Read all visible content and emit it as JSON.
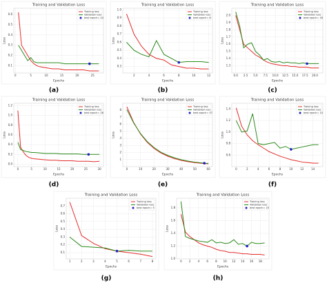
{
  "chart_data": [
    {
      "type": "line",
      "label": "(a)",
      "title": "Training and Validation Loss",
      "xlabel": "Epochs",
      "ylabel": "Loss",
      "legend": "upper right",
      "grid": true,
      "x": [
        1,
        2,
        3,
        4,
        5,
        6,
        7,
        8,
        10,
        12,
        14,
        16,
        18,
        20,
        22,
        24,
        26,
        27
      ],
      "series": [
        {
          "name": "Training loss",
          "color": "#e32b2b",
          "values": [
            0.62,
            0.3,
            0.25,
            0.2,
            0.15,
            0.12,
            0.1,
            0.09,
            0.08,
            0.07,
            0.07,
            0.06,
            0.06,
            0.06,
            0.06,
            0.05,
            0.05,
            0.05
          ]
        },
        {
          "name": "Validation loss",
          "color": "#2a8a1a",
          "values": [
            0.3,
            0.25,
            0.2,
            0.15,
            0.18,
            0.14,
            0.13,
            0.13,
            0.13,
            0.13,
            0.13,
            0.12,
            0.12,
            0.12,
            0.12,
            0.12,
            0.12,
            0.12
          ]
        }
      ],
      "best": {
        "name": "best epoch= 24",
        "color": "#1f1fbf",
        "x": 24,
        "y": 0.12
      },
      "xlim": [
        -0.5,
        28.5
      ],
      "xticks": [
        0,
        5,
        10,
        15,
        20,
        25
      ],
      "ylim": [
        0.03,
        0.66
      ],
      "yticks": [
        0.1,
        0.2,
        0.3,
        0.4,
        0.5,
        0.6
      ]
    },
    {
      "type": "line",
      "label": "(b)",
      "title": "Training and Validation Loss",
      "xlabel": "Epochs",
      "ylabel": "Loss",
      "legend": "upper right",
      "grid": true,
      "x": [
        1,
        2,
        3,
        4,
        5,
        6,
        7,
        8,
        9,
        10,
        11,
        12
      ],
      "series": [
        {
          "name": "Training loss",
          "color": "#e32b2b",
          "values": [
            0.95,
            0.7,
            0.55,
            0.45,
            0.4,
            0.38,
            0.32,
            0.3,
            0.28,
            0.28,
            0.27,
            0.27
          ]
        },
        {
          "name": "Validation loss",
          "color": "#2a8a1a",
          "values": [
            0.6,
            0.5,
            0.45,
            0.42,
            0.62,
            0.45,
            0.4,
            0.35,
            0.36,
            0.36,
            0.36,
            0.35
          ]
        }
      ],
      "best": {
        "name": "best epoch= 8",
        "color": "#1f1fbf",
        "x": 8,
        "y": 0.35
      },
      "xlim": [
        0.5,
        12.5
      ],
      "xticks": [
        2,
        4,
        6,
        8,
        10,
        12
      ],
      "ylim": [
        0.22,
        1.02
      ],
      "yticks": [
        0.3,
        0.4,
        0.5,
        0.6,
        0.7,
        0.8,
        0.9,
        {
          "value": 1,
          "label": "1.0"
        }
      ]
    },
    {
      "type": "line",
      "label": "(c)",
      "title": "Training and Validation Loss",
      "xlabel": "Epochs",
      "ylabel": "Loss",
      "legend": "upper right",
      "grid": true,
      "x": [
        0,
        1,
        2,
        3,
        4,
        5,
        6,
        7,
        8,
        9,
        10,
        11,
        12,
        13,
        14,
        15,
        16,
        17,
        18,
        19,
        20,
        21
      ],
      "series": [
        {
          "name": "Training loss",
          "color": "#e32b2b",
          "values": [
            2.0,
            1.8,
            1.6,
            1.55,
            1.5,
            1.45,
            1.42,
            1.38,
            1.35,
            1.33,
            1.32,
            1.31,
            1.3,
            1.3,
            1.29,
            1.29,
            1.28,
            1.28,
            1.28,
            1.27,
            1.27,
            1.27
          ]
        },
        {
          "name": "Validation loss",
          "color": "#2a8a1a",
          "values": [
            2.05,
            1.85,
            1.55,
            1.6,
            1.62,
            1.5,
            1.45,
            1.38,
            1.4,
            1.36,
            1.35,
            1.36,
            1.34,
            1.35,
            1.34,
            1.34,
            1.33,
            1.34,
            1.33,
            1.33,
            1.33,
            1.33
          ]
        }
      ],
      "best": {
        "name": "best epoch= 18",
        "color": "#1f1fbf",
        "x": 18,
        "y": 1.33
      },
      "xlim": [
        -1,
        22
      ],
      "xticks": [
        {
          "value": 0,
          "label": "0.0"
        },
        2.5,
        {
          "value": 5,
          "label": "5.0"
        },
        7.5,
        {
          "value": 10,
          "label": "10.0"
        },
        12.5,
        {
          "value": 15,
          "label": "15.0"
        },
        17.5,
        {
          "value": 20,
          "label": "20.0"
        }
      ],
      "ylim": [
        1.2,
        2.1
      ],
      "yticks": [
        1.3,
        1.4,
        1.5,
        1.6,
        1.7,
        1.8,
        1.9,
        {
          "value": 2,
          "label": "2.0"
        }
      ]
    },
    {
      "type": "line",
      "label": "(d)",
      "title": "Training and Validation Loss",
      "xlabel": "Epochs",
      "ylabel": "Loss",
      "legend": "upper right",
      "grid": true,
      "x": [
        0,
        1,
        2,
        3,
        4,
        5,
        6,
        8,
        10,
        12,
        14,
        16,
        18,
        20,
        22,
        24,
        26,
        28,
        30
      ],
      "series": [
        {
          "name": "Training loss",
          "color": "#e32b2b",
          "values": [
            1.1,
            0.35,
            0.25,
            0.18,
            0.14,
            0.12,
            0.11,
            0.1,
            0.09,
            0.08,
            0.08,
            0.07,
            0.07,
            0.07,
            0.06,
            0.06,
            0.06,
            0.05,
            0.06
          ]
        },
        {
          "name": "Validation loss",
          "color": "#2a8a1a",
          "values": [
            0.45,
            0.3,
            0.28,
            0.26,
            0.25,
            0.24,
            0.24,
            0.23,
            0.22,
            0.22,
            0.22,
            0.21,
            0.21,
            0.21,
            0.21,
            0.2,
            0.2,
            0.2,
            0.2
          ]
        }
      ],
      "best": {
        "name": "best epoch= 26",
        "color": "#1f1fbf",
        "x": 26,
        "y": 0.2
      },
      "xlim": [
        -1.5,
        31.5
      ],
      "xticks": [
        0,
        5,
        10,
        15,
        20,
        25,
        30
      ],
      "ylim": [
        -0.05,
        1.25
      ],
      "yticks": [
        {
          "value": 0,
          "label": "0.0"
        },
        0.2,
        0.4,
        0.6,
        0.8,
        {
          "value": 1,
          "label": "1.0"
        },
        1.2
      ]
    },
    {
      "type": "line",
      "label": "(e)",
      "title": "Training and Validation Loss",
      "xlabel": "Epochs",
      "ylabel": "Loss",
      "legend": "upper right",
      "grid": true,
      "x": [
        0,
        5,
        10,
        15,
        20,
        25,
        30,
        35,
        40,
        45,
        50,
        55,
        57,
        60
      ],
      "series": [
        {
          "name": "Training loss",
          "color": "#e32b2b",
          "values": [
            8.5,
            6.27,
            4.64,
            3.45,
            2.58,
            1.94,
            1.48,
            1.14,
            0.88,
            0.7,
            0.56,
            0.46,
            0.43,
            0.39
          ]
        },
        {
          "name": "Validation loss",
          "color": "#2a8a1a",
          "values": [
            8.1,
            6.2,
            4.7,
            3.55,
            2.7,
            2.05,
            1.6,
            1.25,
            0.98,
            0.78,
            0.63,
            0.52,
            0.48,
            0.45
          ]
        }
      ],
      "best": {
        "name": "best epoch= 57",
        "color": "#1f1fbf",
        "x": 57,
        "y": 0.48
      },
      "xlim": [
        -3,
        63
      ],
      "xticks": [
        0,
        10,
        20,
        30,
        40,
        50,
        60
      ],
      "ylim": [
        0,
        9
      ],
      "yticks": [
        1,
        2,
        3,
        4,
        5,
        6,
        7,
        8
      ]
    },
    {
      "type": "line",
      "label": "(f)",
      "title": "Training and Validation Loss",
      "xlabel": "Epochs",
      "ylabel": "Loss",
      "legend": "upper right",
      "grid": true,
      "x": [
        0,
        1,
        2,
        3,
        4,
        5,
        6,
        7,
        8,
        9,
        10,
        11,
        12,
        13,
        14,
        15
      ],
      "series": [
        {
          "name": "Training loss",
          "color": "#e32b2b",
          "values": [
            1.42,
            1.1,
            0.95,
            0.85,
            0.78,
            0.72,
            0.66,
            0.62,
            0.58,
            0.55,
            0.52,
            0.5,
            0.48,
            0.47,
            0.46,
            0.46
          ]
        },
        {
          "name": "Validation loss",
          "color": "#2a8a1a",
          "values": [
            1.2,
            1.0,
            1.02,
            1.32,
            0.8,
            0.78,
            0.8,
            0.82,
            0.72,
            0.75,
            0.7,
            0.72,
            0.74,
            0.76,
            0.78,
            0.78
          ]
        }
      ],
      "best": {
        "name": "best epoch= 10",
        "color": "#1f1fbf",
        "x": 10,
        "y": 0.7
      },
      "xlim": [
        -0.8,
        15.8
      ],
      "xticks": [
        0,
        2,
        4,
        6,
        8,
        10,
        12,
        14
      ],
      "ylim": [
        0.4,
        1.5
      ],
      "yticks": [
        0.6,
        0.8,
        {
          "value": 1,
          "label": "1.0"
        },
        1.2,
        1.4
      ]
    },
    {
      "type": "line",
      "label": "(g)",
      "title": "Training and Validation Loss",
      "xlabel": "Epochs",
      "ylabel": "Loss",
      "legend": "upper right",
      "grid": true,
      "x": [
        1,
        2,
        3,
        4,
        5,
        6,
        7,
        8
      ],
      "series": [
        {
          "name": "Training loss",
          "color": "#e32b2b",
          "values": [
            0.75,
            0.32,
            0.22,
            0.15,
            0.12,
            0.1,
            0.08,
            0.05
          ]
        },
        {
          "name": "Validation loss",
          "color": "#2a8a1a",
          "values": [
            0.3,
            0.18,
            0.17,
            0.16,
            0.12,
            0.13,
            0.12,
            0.12
          ]
        }
      ],
      "best": {
        "name": "best epoch= 5",
        "color": "#1f1fbf",
        "x": 5,
        "y": 0.12
      },
      "xlim": [
        0.7,
        8.3
      ],
      "xticks": [
        1,
        2,
        3,
        4,
        5,
        6,
        7,
        8
      ],
      "ylim": [
        0.02,
        0.8
      ],
      "yticks": [
        0.1,
        0.2,
        0.3,
        0.4,
        0.5,
        0.6,
        0.7
      ]
    },
    {
      "type": "line",
      "label": "(h)",
      "title": "Training and Validation Loss",
      "xlabel": "Epochs",
      "ylabel": "Loss",
      "legend": "upper right",
      "grid": true,
      "x": [
        0,
        1,
        2,
        3,
        4,
        5,
        6,
        7,
        8,
        9,
        10,
        11,
        12,
        13,
        14,
        15,
        16,
        17,
        18,
        19
      ],
      "series": [
        {
          "name": "Training loss",
          "color": "#e32b2b",
          "values": [
            1.7,
            1.42,
            1.35,
            1.3,
            1.25,
            1.22,
            1.2,
            1.18,
            1.15,
            1.13,
            1.12,
            1.1,
            1.1,
            1.09,
            1.08,
            1.08,
            1.07,
            1.07,
            1.07,
            1.06
          ]
        },
        {
          "name": "Validation loss",
          "color": "#2a8a1a",
          "values": [
            1.9,
            1.35,
            1.32,
            1.3,
            1.28,
            1.27,
            1.26,
            1.3,
            1.25,
            1.26,
            1.24,
            1.25,
            1.3,
            1.23,
            1.24,
            1.2,
            1.26,
            1.24,
            1.24,
            1.25
          ]
        }
      ],
      "best": {
        "name": "best epoch= 15",
        "color": "#1f1fbf",
        "x": 15,
        "y": 1.2
      },
      "xlim": [
        -1,
        20
      ],
      "xticks": [
        0,
        2,
        4,
        6,
        8,
        10,
        12,
        14,
        16,
        18
      ],
      "ylim": [
        1.0,
        1.95
      ],
      "yticks": [
        {
          "value": 1,
          "label": "1.0"
        },
        1.2,
        1.4,
        1.6,
        1.8
      ]
    }
  ]
}
